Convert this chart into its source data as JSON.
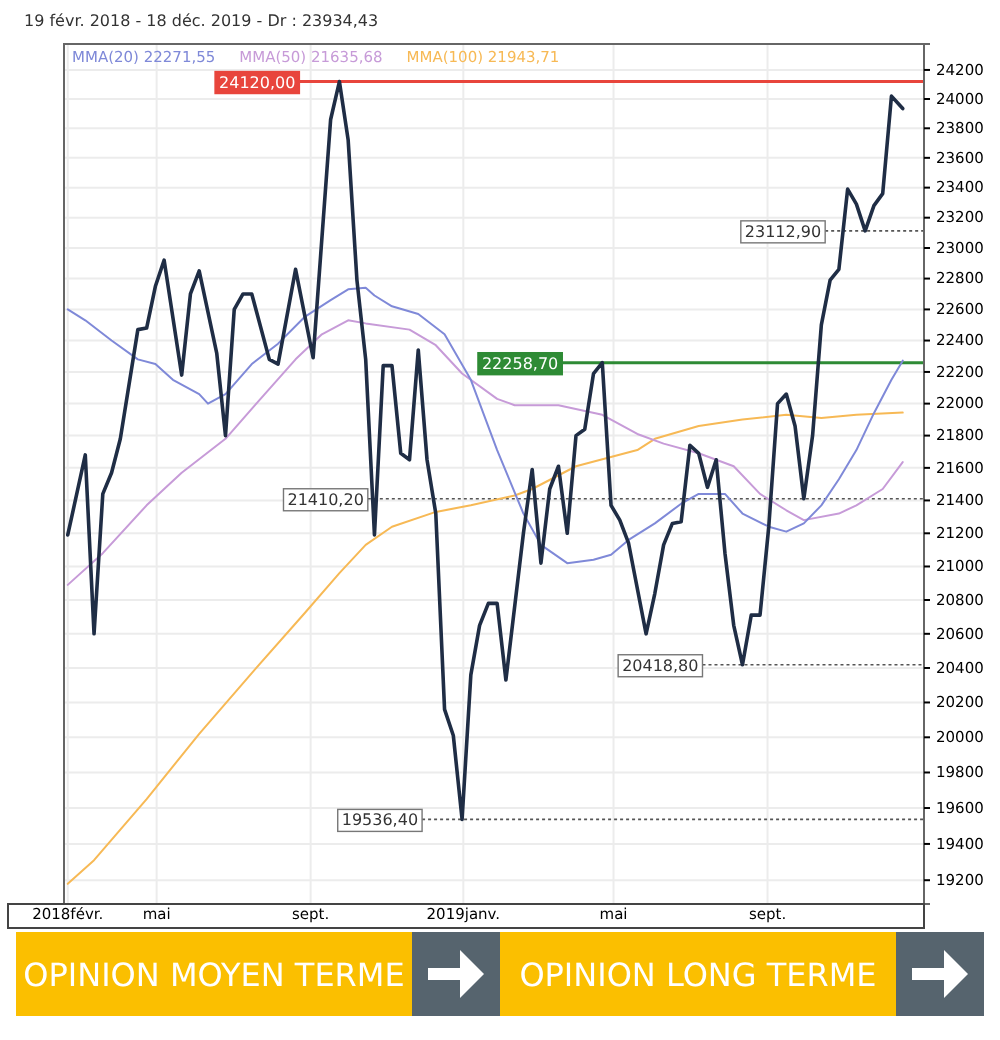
{
  "chart_data": {
    "type": "line",
    "title": "19 févr. 2018 - 18 déc. 2019 - Dr : 23934,43",
    "xlim": [
      "2018-02-16",
      "2020-01-04"
    ],
    "xticks": [
      {
        "value": "2018-02-19",
        "label": "2018févr."
      },
      {
        "value": "2018-05-01",
        "label": "mai"
      },
      {
        "value": "2018-09-01",
        "label": "sept."
      },
      {
        "value": "2019-01-01",
        "label": "2019janv."
      },
      {
        "value": "2019-05-01",
        "label": "mai"
      },
      {
        "value": "2019-09-01",
        "label": "sept."
      }
    ],
    "ylim": [
      19070,
      24380
    ],
    "yticks": [
      19200,
      19400,
      19600,
      19800,
      20000,
      20200,
      20400,
      20600,
      20800,
      21000,
      21200,
      21400,
      21600,
      21800,
      22000,
      22200,
      22400,
      22600,
      22800,
      23000,
      23200,
      23400,
      23600,
      23800,
      24000,
      24200
    ],
    "log": true,
    "grid": true,
    "legend": "top left",
    "line_style": "solid",
    "series": [
      {
        "color": "#1f2d45",
        "x": [
          "2018-02-19",
          "2018-03-05",
          "2018-03-12",
          "2018-03-19",
          "2018-03-26",
          "2018-04-02",
          "2018-04-16",
          "2018-04-23",
          "2018-04-30",
          "2018-05-07",
          "2018-05-21",
          "2018-05-28",
          "2018-06-04",
          "2018-06-18",
          "2018-06-25",
          "2018-07-02",
          "2018-07-09",
          "2018-07-16",
          "2018-07-30",
          "2018-08-06",
          "2018-08-20",
          "2018-09-03",
          "2018-09-17",
          "2018-09-24",
          "2018-10-01",
          "2018-10-08",
          "2018-10-15",
          "2018-10-22",
          "2018-10-29",
          "2018-11-05",
          "2018-11-12",
          "2018-11-19",
          "2018-11-26",
          "2018-12-03",
          "2018-12-10",
          "2018-12-17",
          "2018-12-24",
          "2018-12-31",
          "2019-01-07",
          "2019-01-14",
          "2019-01-21",
          "2019-01-28",
          "2019-02-04",
          "2019-02-18",
          "2019-02-25",
          "2019-03-04",
          "2019-03-11",
          "2019-03-18",
          "2019-03-25",
          "2019-04-01",
          "2019-04-08",
          "2019-04-15",
          "2019-04-22",
          "2019-04-29",
          "2019-05-06",
          "2019-05-13",
          "2019-05-27",
          "2019-06-03",
          "2019-06-10",
          "2019-06-17",
          "2019-06-24",
          "2019-07-01",
          "2019-07-08",
          "2019-07-15",
          "2019-07-22",
          "2019-07-29",
          "2019-08-05",
          "2019-08-12",
          "2019-08-19",
          "2019-08-26",
          "2019-09-02",
          "2019-09-09",
          "2019-09-16",
          "2019-09-23",
          "2019-09-30",
          "2019-10-07",
          "2019-10-14",
          "2019-10-21",
          "2019-10-28",
          "2019-11-04",
          "2019-11-11",
          "2019-11-18",
          "2019-11-25",
          "2019-12-02",
          "2019-12-09",
          "2019-12-18"
        ],
        "values": [
          21190,
          21680,
          20600,
          21440,
          21570,
          21780,
          22470,
          22480,
          22750,
          22920,
          22180,
          22700,
          22850,
          22320,
          21800,
          22600,
          22700,
          22700,
          22280,
          22250,
          22860,
          22290,
          23860,
          24120,
          23720,
          22790,
          22280,
          21190,
          22240,
          22240,
          21690,
          21650,
          22340,
          21650,
          21320,
          20160,
          20010,
          19536.4,
          20360,
          20650,
          20780,
          20780,
          20330,
          21200,
          21590,
          21020,
          21470,
          21610,
          21200,
          21800,
          21840,
          22190,
          22258.7,
          21370,
          21280,
          21140,
          20600,
          20840,
          21130,
          21260,
          21270,
          21740,
          21690,
          21480,
          21650,
          21080,
          20650,
          20418.8,
          20710,
          20710,
          21240,
          22000,
          22060,
          21860,
          21410.2,
          21800,
          22500,
          22790,
          22860,
          23390,
          23290,
          23112.9,
          23280,
          23360,
          24020,
          23934.43
        ]
      },
      {
        "name": "MMA(20)  22271,55",
        "color": "#7f89d8",
        "x": [
          "2018-02-19",
          "2018-03-05",
          "2018-03-26",
          "2018-04-16",
          "2018-04-30",
          "2018-05-14",
          "2018-06-04",
          "2018-06-11",
          "2018-06-25",
          "2018-07-16",
          "2018-08-06",
          "2018-08-27",
          "2018-09-17",
          "2018-10-01",
          "2018-10-15",
          "2018-10-22",
          "2018-11-05",
          "2018-11-26",
          "2018-12-17",
          "2019-01-07",
          "2019-01-28",
          "2019-02-18",
          "2019-03-04",
          "2019-03-25",
          "2019-04-15",
          "2019-04-29",
          "2019-05-13",
          "2019-06-03",
          "2019-06-24",
          "2019-07-08",
          "2019-07-29",
          "2019-08-12",
          "2019-09-02",
          "2019-09-16",
          "2019-09-30",
          "2019-10-14",
          "2019-10-28",
          "2019-11-11",
          "2019-11-25",
          "2019-12-09",
          "2019-12-18"
        ],
        "values": [
          22600,
          22530,
          22400,
          22280,
          22250,
          22150,
          22060,
          22000,
          22060,
          22250,
          22380,
          22550,
          22660,
          22730,
          22740,
          22690,
          22620,
          22570,
          22440,
          22150,
          21710,
          21320,
          21130,
          21020,
          21040,
          21070,
          21160,
          21260,
          21380,
          21440,
          21440,
          21320,
          21240,
          21210,
          21260,
          21370,
          21530,
          21710,
          21940,
          22150,
          22271.55
        ]
      },
      {
        "name": "MMA(50)  21635,68",
        "color": "#c79bd8",
        "x": [
          "2018-02-19",
          "2018-03-19",
          "2018-04-23",
          "2018-05-21",
          "2018-06-25",
          "2018-07-23",
          "2018-08-20",
          "2018-09-10",
          "2018-10-01",
          "2018-10-15",
          "2018-11-19",
          "2018-12-10",
          "2018-12-31",
          "2019-01-28",
          "2019-02-11",
          "2019-03-18",
          "2019-04-22",
          "2019-05-20",
          "2019-06-10",
          "2019-07-08",
          "2019-08-05",
          "2019-08-26",
          "2019-09-16",
          "2019-09-30",
          "2019-10-28",
          "2019-11-11",
          "2019-12-02",
          "2019-12-18"
        ],
        "values": [
          20890,
          21080,
          21370,
          21570,
          21780,
          22030,
          22280,
          22440,
          22530,
          22510,
          22470,
          22370,
          22190,
          22030,
          21990,
          21990,
          21930,
          21810,
          21750,
          21690,
          21610,
          21440,
          21340,
          21280,
          21320,
          21370,
          21470,
          21635.68
        ]
      },
      {
        "name": "MMA(100)  21943,71",
        "color": "#f7b955",
        "x": [
          "2018-02-19",
          "2018-03-12",
          "2018-04-23",
          "2018-06-04",
          "2018-07-16",
          "2018-08-27",
          "2018-09-24",
          "2018-10-15",
          "2018-11-05",
          "2018-12-10",
          "2019-01-07",
          "2019-02-11",
          "2019-02-25",
          "2019-04-01",
          "2019-05-20",
          "2019-06-03",
          "2019-07-08",
          "2019-08-12",
          "2019-09-16",
          "2019-10-14",
          "2019-11-11",
          "2019-12-18"
        ],
        "values": [
          19180,
          19310,
          19650,
          20020,
          20370,
          20720,
          20960,
          21130,
          21240,
          21330,
          21370,
          21430,
          21470,
          21610,
          21710,
          21780,
          21860,
          21900,
          21930,
          21910,
          21930,
          21943.71
        ]
      }
    ],
    "ref_lines": [
      {
        "axis": "y",
        "value": 24120,
        "label": "24120,00",
        "color": "#e8453c",
        "line_style": "solid"
      },
      {
        "axis": "y",
        "value": 22258.7,
        "label": "22258,70",
        "color": "#2e8b35",
        "line_style": "solid"
      },
      {
        "axis": "y",
        "value": 23112.9,
        "label": "23112,90",
        "color": "#555555",
        "line_style": "dotted"
      },
      {
        "axis": "y",
        "value": 21410.2,
        "label": "21410,20",
        "color": "#555555",
        "line_style": "dotted"
      },
      {
        "axis": "y",
        "value": 20418.8,
        "label": "20418,80",
        "color": "#555555",
        "line_style": "dotted"
      },
      {
        "axis": "y",
        "value": 19536.4,
        "label": "19536,40",
        "color": "#555555",
        "line_style": "dotted"
      }
    ],
    "annotations": [
      "OPINION MOYEN TERME",
      "OPINION LONG TERME"
    ]
  }
}
